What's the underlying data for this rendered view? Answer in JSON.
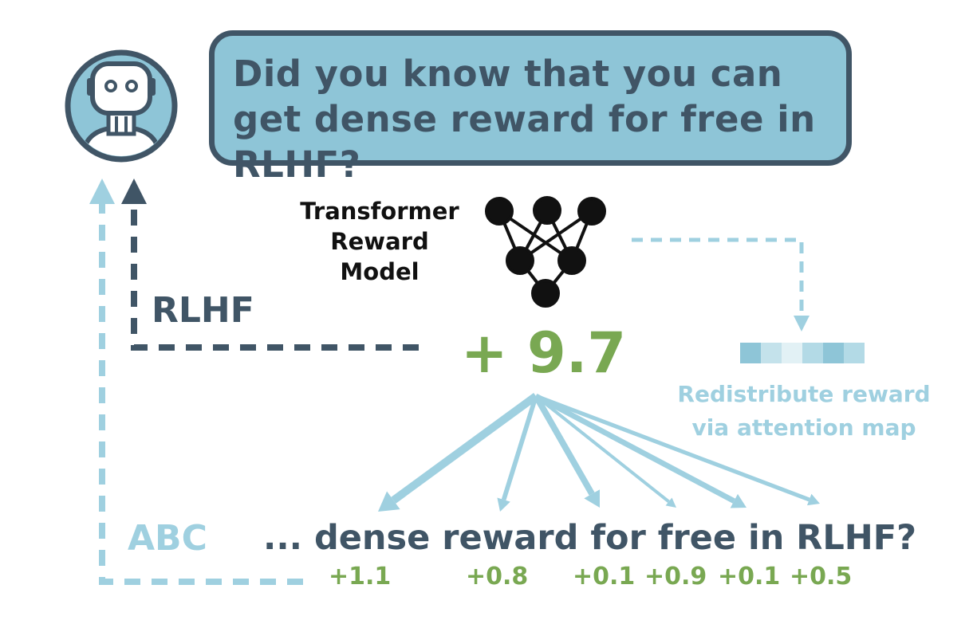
{
  "bubble": {
    "text": "Did you know that you can get dense reward for free in RLHF?"
  },
  "reward_model": {
    "label": "Transformer Reward Model"
  },
  "rlhf_label": "RLHF",
  "score": "+ 9.7",
  "redistribute": {
    "label": "Redistribute reward via attention map"
  },
  "abc_label": "ABC",
  "sentence": "... dense reward for free in RLHF?",
  "token_rewards": [
    "+1.1",
    "+0.8",
    "+0.1",
    "+0.9",
    "+0.1",
    "+0.5"
  ],
  "attention_weights": [
    1.0,
    0.4,
    0.7,
    0.15,
    0.55,
    0.3
  ],
  "colors": {
    "dark": "#405566",
    "light_blue": "#9fd0e0",
    "bubble_fill": "#8ec5d7",
    "green": "#79a852",
    "black": "#111111"
  }
}
